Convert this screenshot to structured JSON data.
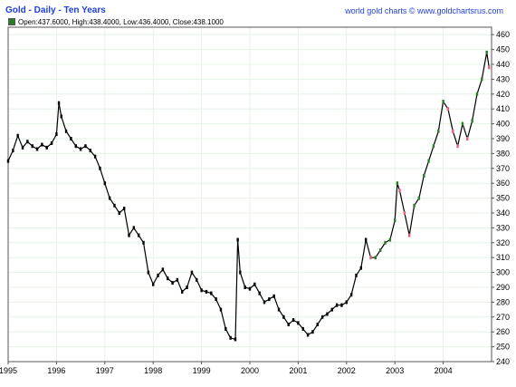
{
  "header": {
    "title": "Gold - Daily - Ten Years",
    "credit": "world gold charts © www.goldchartsrus.com",
    "ohlc": "Open:437.6000, High:438.4000, Low:436.4000, Close:438.1000"
  },
  "colors": {
    "line": "#000000",
    "up_candle": "#2b7a2b",
    "down_candle": "#e0607a",
    "grid": "#e6f2e6",
    "frame": "#555555",
    "title": "#1f3fd6"
  },
  "chart_data": {
    "type": "line",
    "title": "Gold - Daily - Ten Years",
    "xlabel": "",
    "ylabel": "",
    "xlim": [
      1995.0,
      2005.0
    ],
    "ylim": [
      240,
      465
    ],
    "x_ticks": [
      "1995",
      "1996",
      "1997",
      "1998",
      "1999",
      "2000",
      "2001",
      "2002",
      "2003",
      "2004"
    ],
    "y_ticks": [
      240,
      250,
      260,
      270,
      280,
      290,
      300,
      310,
      320,
      330,
      340,
      350,
      360,
      370,
      380,
      390,
      400,
      410,
      420,
      430,
      440,
      450,
      460
    ],
    "grid": true,
    "y_axis_side": "right",
    "series": [
      {
        "x": [
          1995.0,
          1995.1,
          1995.2,
          1995.3,
          1995.4,
          1995.5,
          1995.6,
          1995.7,
          1995.8,
          1995.9,
          1996.0,
          1996.05,
          1996.1,
          1996.2,
          1996.3,
          1996.4,
          1996.5,
          1996.6,
          1996.7,
          1996.8,
          1996.9,
          1997.0,
          1997.1,
          1997.2,
          1997.3,
          1997.4,
          1997.5,
          1997.6,
          1997.7,
          1997.8,
          1997.9,
          1998.0,
          1998.1,
          1998.2,
          1998.3,
          1998.4,
          1998.5,
          1998.6,
          1998.7,
          1998.8,
          1998.9,
          1999.0,
          1999.1,
          1999.2,
          1999.3,
          1999.4,
          1999.5,
          1999.6,
          1999.7,
          1999.75,
          1999.8,
          1999.9,
          2000.0,
          2000.1,
          2000.2,
          2000.3,
          2000.4,
          2000.5,
          2000.6,
          2000.7,
          2000.8,
          2000.9,
          2001.0,
          2001.1,
          2001.2,
          2001.3,
          2001.4,
          2001.5,
          2001.6,
          2001.7,
          2001.8,
          2001.9,
          2002.0,
          2002.1,
          2002.2,
          2002.3,
          2002.4,
          2002.5,
          2002.6,
          2002.7,
          2002.8,
          2002.9,
          2003.0,
          2003.05,
          2003.1,
          2003.2,
          2003.3,
          2003.4,
          2003.5,
          2003.6,
          2003.7,
          2003.8,
          2003.9,
          2004.0,
          2004.1,
          2004.2,
          2004.3,
          2004.4,
          2004.5,
          2004.6,
          2004.7,
          2004.8,
          2004.9,
          2004.95
        ],
        "y": [
          375,
          382,
          392,
          384,
          388,
          385,
          383,
          386,
          384,
          387,
          393,
          414,
          405,
          395,
          390,
          385,
          383,
          385,
          382,
          378,
          370,
          360,
          350,
          345,
          340,
          343,
          325,
          330,
          325,
          320,
          300,
          292,
          298,
          302,
          296,
          293,
          295,
          287,
          290,
          300,
          295,
          288,
          287,
          286,
          282,
          275,
          262,
          256,
          255,
          322,
          300,
          290,
          289,
          292,
          286,
          280,
          282,
          284,
          275,
          270,
          265,
          268,
          266,
          262,
          258,
          260,
          265,
          270,
          272,
          275,
          278,
          278,
          280,
          285,
          298,
          303,
          322,
          310,
          310,
          315,
          320,
          322,
          335,
          360,
          355,
          340,
          325,
          345,
          350,
          365,
          375,
          385,
          395,
          415,
          410,
          395,
          385,
          400,
          390,
          402,
          420,
          430,
          448,
          438
        ]
      }
    ]
  }
}
